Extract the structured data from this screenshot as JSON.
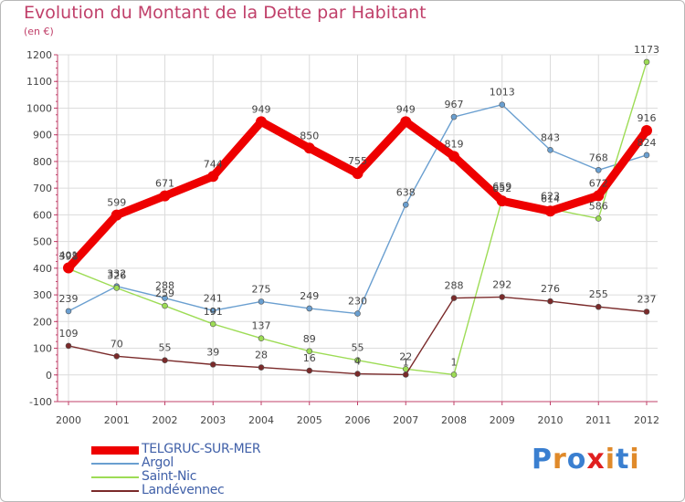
{
  "title": "Evolution du Montant de la Dette par Habitant",
  "subtitle": "(en €)",
  "chart_data": {
    "type": "line",
    "title": "Evolution du Montant de la Dette par Habitant",
    "ylabel": "(en €)",
    "xlabel": "",
    "grid": true,
    "ylim": [
      -100,
      1200
    ],
    "yticks": [
      -100,
      0,
      100,
      200,
      300,
      400,
      500,
      600,
      700,
      800,
      900,
      1000,
      1100,
      1200
    ],
    "x": [
      2000,
      2001,
      2002,
      2003,
      2004,
      2005,
      2006,
      2007,
      2008,
      2009,
      2010,
      2011,
      2012
    ],
    "series": [
      {
        "name": "TELGRUC-SUR-MER",
        "color": "#ee0000",
        "values": [
          401,
          599,
          671,
          744,
          949,
          850,
          755,
          949,
          819,
          652,
          614,
          672,
          916
        ]
      },
      {
        "name": "Argol",
        "color": "#6a9fd0",
        "values": [
          239,
          332,
          288,
          241,
          275,
          249,
          230,
          638,
          967,
          1013,
          843,
          768,
          824
        ]
      },
      {
        "name": "Saint-Nic",
        "color": "#9ddc55",
        "values": [
          398,
          326,
          259,
          191,
          137,
          89,
          55,
          22,
          1,
          659,
          623,
          586,
          1173
        ]
      },
      {
        "name": "Landévennec",
        "color": "#7a2a2a",
        "values": [
          109,
          70,
          55,
          39,
          28,
          16,
          4,
          1,
          288,
          292,
          276,
          255,
          237
        ]
      }
    ],
    "legend_position": "bottom-left"
  },
  "legend": [
    {
      "label": "TELGRUC-SUR-MER"
    },
    {
      "label": "Argol"
    },
    {
      "label": "Saint-Nic"
    },
    {
      "label": "Landévennec"
    }
  ],
  "logo": {
    "text": "Proxiti",
    "letters": [
      "P",
      "r",
      "o",
      "x",
      "i",
      "t",
      "i"
    ],
    "colors": [
      "#3a7fd0",
      "#e08a2a",
      "#3a7fd0",
      "#e02020",
      "#e08a2a",
      "#3a7fd0",
      "#e08a2a"
    ]
  }
}
